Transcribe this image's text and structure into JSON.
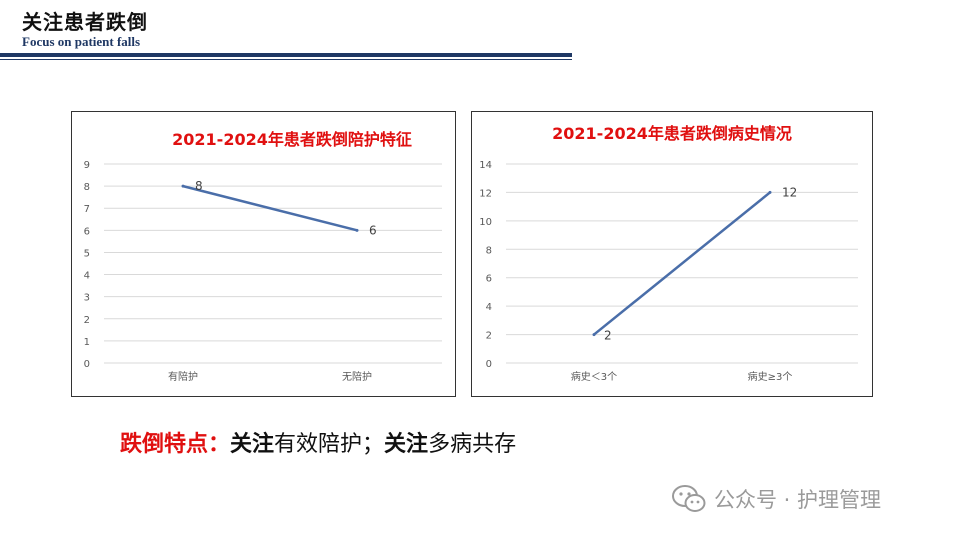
{
  "header": {
    "title": "关注患者跌倒",
    "subtitle": "Focus on patient falls"
  },
  "colors": {
    "title_rule": "#1f3864",
    "chart_title": "#e01010",
    "series_line": "#4a6ea9",
    "gridline": "#d9d9d9",
    "caption_red": "#e01010"
  },
  "chart_data": [
    {
      "type": "line",
      "title": "2021-2024年患者跌倒陪护特征",
      "categories": [
        "有陪护",
        "无陪护"
      ],
      "series": [
        {
          "values": [
            8,
            6
          ]
        }
      ],
      "ylim": [
        0,
        9
      ],
      "yticks": [
        0,
        1,
        2,
        3,
        4,
        5,
        6,
        7,
        8,
        9
      ],
      "data_labels": [
        "8",
        "6"
      ],
      "grid": true,
      "legend": "none"
    },
    {
      "type": "line",
      "title": "2021-2024年患者跌倒病史情况",
      "categories": [
        "病史＜3个",
        "病史≥3个"
      ],
      "series": [
        {
          "values": [
            2,
            12
          ]
        }
      ],
      "ylim": [
        0,
        14
      ],
      "yticks": [
        0,
        2,
        4,
        6,
        8,
        10,
        12,
        14
      ],
      "data_labels": [
        "2",
        "12"
      ],
      "grid": true,
      "legend": "none"
    }
  ],
  "caption": {
    "prefix": "跌倒特点：",
    "part1_bold": "关注",
    "part1_rest": "有效陪护；",
    "part2_bold": "关注",
    "part2_rest": "多病共存"
  },
  "watermark": {
    "icon": "wechat-icon",
    "text": "公众号 · 护理管理"
  }
}
